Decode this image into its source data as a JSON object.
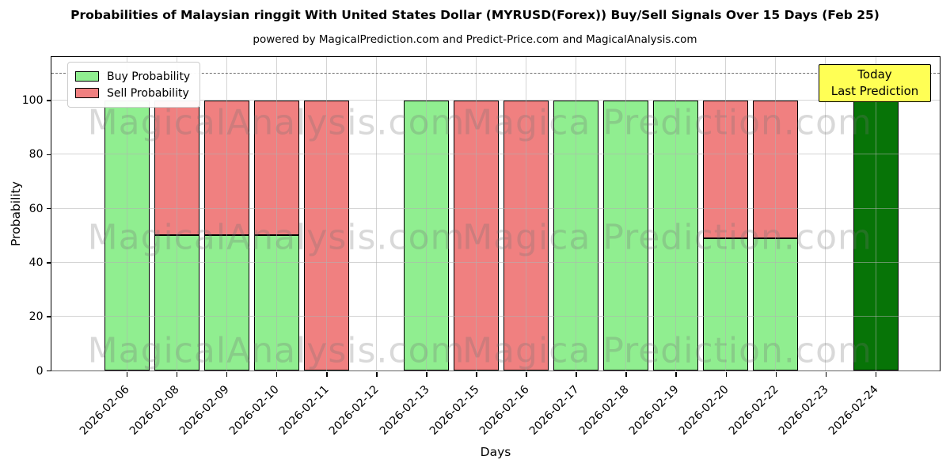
{
  "chart_data": {
    "type": "bar",
    "stacked": true,
    "title": "Probabilities of Malaysian ringgit With United States Dollar (MYRUSD(Forex)) Buy/Sell Signals Over 15 Days (Feb 25)",
    "subtitle": "powered by MagicalPrediction.com and Predict-Price.com and MagicalAnalysis.com",
    "xlabel": "Days",
    "ylabel": "Probability",
    "ylim": [
      0,
      116
    ],
    "yticks": [
      0,
      20,
      40,
      60,
      80,
      100
    ],
    "dashed_guideline_y": 110,
    "grid": true,
    "legend_position": "upper-left",
    "categories": [
      "2026-02-06",
      "2026-02-08",
      "2026-02-09",
      "2026-02-10",
      "2026-02-11",
      "2026-02-12",
      "2026-02-13",
      "2026-02-15",
      "2026-02-16",
      "2026-02-17",
      "2026-02-18",
      "2026-02-19",
      "2026-02-20",
      "2026-02-22",
      "2026-02-23",
      "2026-02-24"
    ],
    "series": [
      {
        "name": "Buy Probability",
        "color": "#90EE90",
        "in_legend": true,
        "values": [
          100,
          50,
          50,
          50,
          0,
          0,
          100,
          0,
          0,
          100,
          100,
          100,
          49,
          49,
          0,
          0
        ]
      },
      {
        "name": "Sell Probability",
        "color": "#F08080",
        "in_legend": true,
        "values": [
          0,
          50,
          50,
          50,
          100,
          0,
          0,
          100,
          100,
          0,
          0,
          0,
          51,
          51,
          0,
          0
        ]
      },
      {
        "name": "Last Prediction",
        "color": "#077407",
        "in_legend": false,
        "values": [
          0,
          0,
          0,
          0,
          0,
          0,
          0,
          0,
          0,
          0,
          0,
          0,
          0,
          0,
          0,
          100
        ]
      }
    ]
  },
  "annotation": {
    "line1": "Today",
    "line2": "Last Prediction",
    "bg_color": "#FFFF55"
  },
  "watermarks": {
    "left": "MagicalAnalysis.com",
    "right": "Magica Prediction.com"
  }
}
